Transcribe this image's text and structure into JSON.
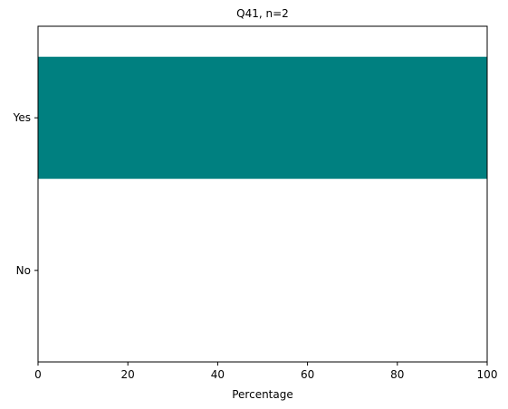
{
  "chart_data": {
    "type": "bar",
    "orientation": "horizontal",
    "title": "Q41, n=2",
    "xlabel": "Percentage",
    "ylabel": "",
    "categories": [
      "Yes",
      "No"
    ],
    "values": [
      100,
      0
    ],
    "xlim": [
      0,
      100
    ],
    "xticks": [
      0,
      20,
      40,
      60,
      80,
      100
    ],
    "bar_color": "#008080",
    "grid": false,
    "legend": "none"
  }
}
